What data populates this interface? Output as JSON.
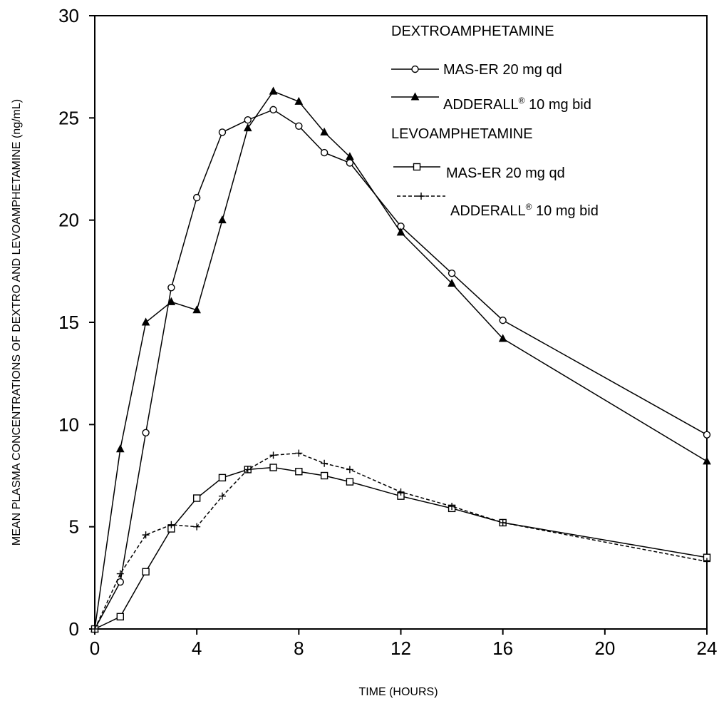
{
  "chart_data": {
    "type": "line",
    "title": "",
    "xlabel": "TIME (HOURS)",
    "ylabel": "MEAN  PLASMA CONCENTRATIONS OF DEXTRO AND LEVOAMPHETAMINE (ng/mL)",
    "xlim": [
      0,
      24
    ],
    "ylim": [
      0,
      30
    ],
    "xticks": [
      "0",
      "4",
      "8",
      "12",
      "16",
      "20",
      "24"
    ],
    "yticks": [
      "0",
      "5",
      "10",
      "15",
      "20",
      "25",
      "30"
    ],
    "grid": false,
    "legend_placement": "top-right",
    "legend_groups": [
      {
        "heading": "DEXTROAMPHETAMINE",
        "items": [
          0,
          1
        ]
      },
      {
        "heading": "LEVOAMPHETAMINE",
        "items": [
          2,
          3
        ]
      }
    ],
    "series": [
      {
        "name": "MAS-ER 20 mg qd",
        "label_main": "MAS-ER 20 mg qd",
        "marker": "open-circle",
        "dash": "solid",
        "x": [
          0,
          1,
          2,
          3,
          4,
          5,
          6,
          7,
          8,
          9,
          10,
          12,
          14,
          16,
          24
        ],
        "y": [
          0,
          2.3,
          9.6,
          16.7,
          21.1,
          24.3,
          24.9,
          25.4,
          24.6,
          23.3,
          22.8,
          19.7,
          17.4,
          15.1,
          9.5
        ]
      },
      {
        "name": "ADDERALL® 10 mg bid",
        "label_main": "ADDERALL",
        "label_sup": "®",
        "label_tail": " 10 mg bid",
        "marker": "filled-triangle",
        "dash": "solid",
        "x": [
          0,
          1,
          2,
          3,
          4,
          5,
          6,
          7,
          8,
          9,
          10,
          12,
          14,
          16,
          24
        ],
        "y": [
          0,
          8.8,
          15.0,
          16.0,
          15.6,
          20.0,
          24.5,
          26.3,
          25.8,
          24.3,
          23.1,
          19.4,
          16.9,
          14.2,
          8.2
        ]
      },
      {
        "name": "MAS-ER 20 mg qd",
        "label_main": "MAS-ER 20 mg qd",
        "marker": "open-square",
        "dash": "solid",
        "x": [
          0,
          1,
          2,
          3,
          4,
          5,
          6,
          7,
          8,
          9,
          10,
          12,
          14,
          16,
          24
        ],
        "y": [
          0,
          0.6,
          2.8,
          4.9,
          6.4,
          7.4,
          7.8,
          7.9,
          7.7,
          7.5,
          7.2,
          6.5,
          5.9,
          5.2,
          3.5
        ]
      },
      {
        "name": "ADDERALL® 10 mg bid",
        "label_main": "ADDERALL",
        "label_sup": "®",
        "label_tail": " 10 mg bid",
        "marker": "plus",
        "dash": "dashed",
        "x": [
          0,
          1,
          2,
          3,
          4,
          5,
          6,
          7,
          8,
          9,
          10,
          12,
          14,
          16,
          24
        ],
        "y": [
          0,
          2.7,
          4.6,
          5.1,
          5.0,
          6.5,
          7.8,
          8.5,
          8.6,
          8.1,
          7.8,
          6.7,
          6.0,
          5.2,
          3.3
        ]
      }
    ]
  }
}
